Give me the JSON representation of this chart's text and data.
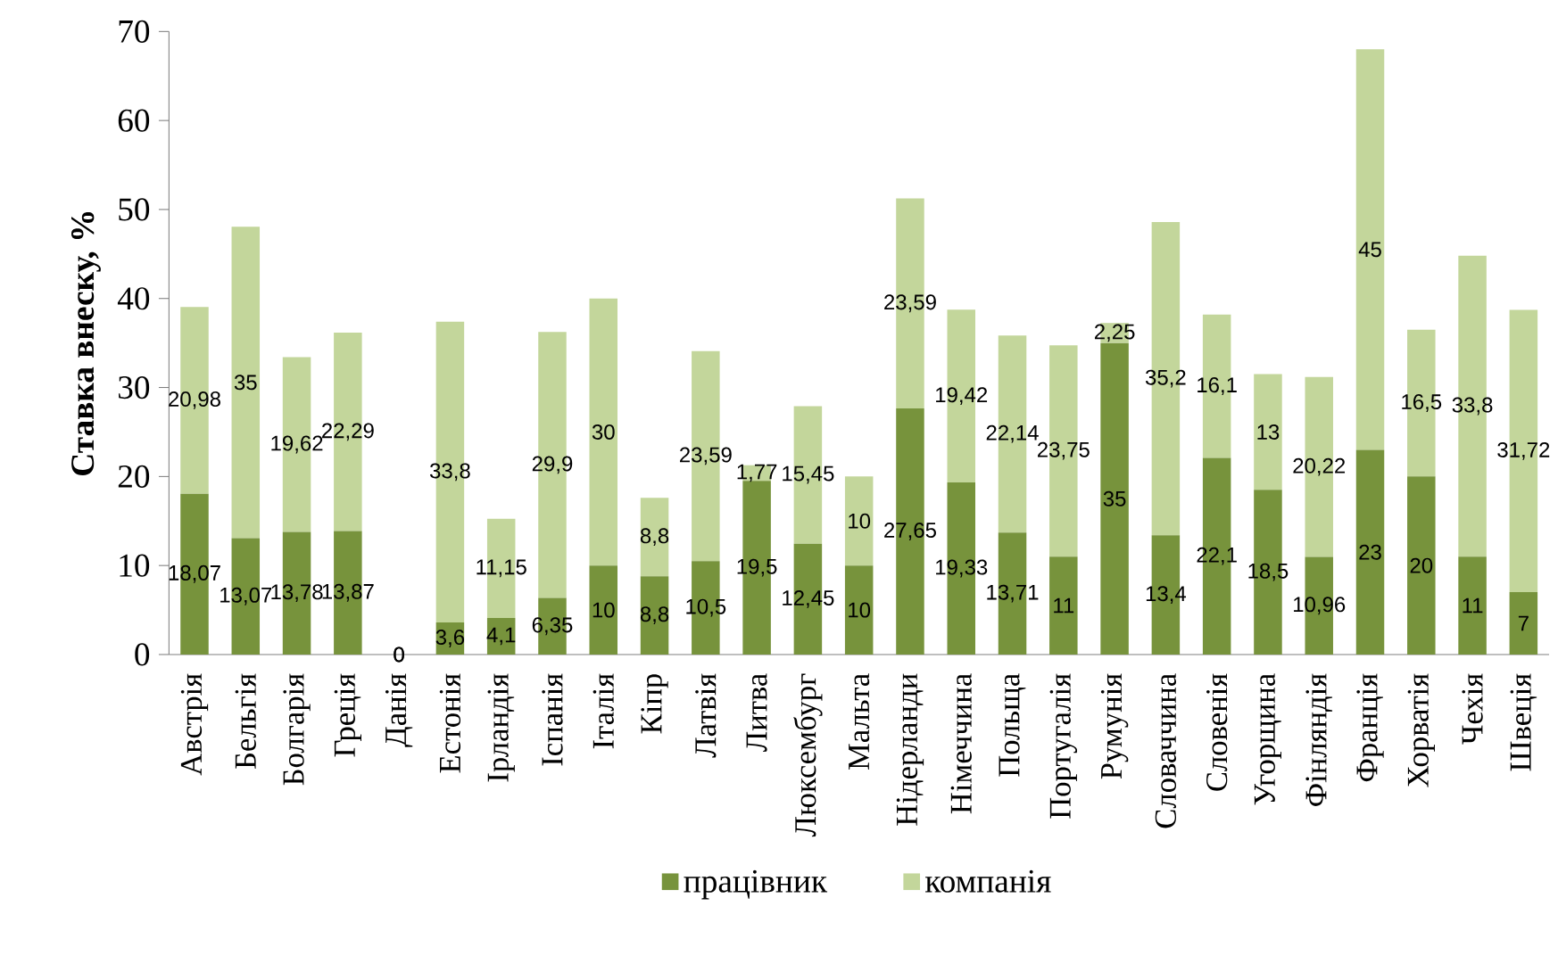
{
  "chart_data": {
    "type": "bar",
    "stacked": true,
    "ylabel": "Ставка внеску, %",
    "categories": [
      "Австрія",
      "Бельгія",
      "Болгарія",
      "Греція",
      "Данія",
      "Естонія",
      "Ірландія",
      "Іспанія",
      "Італія",
      "Кіпр",
      "Латвія",
      "Литва",
      "Люксембург",
      "Мальта",
      "Нідерланди",
      "Німеччина",
      "Польща",
      "Португалія",
      "Румунія",
      "Словаччина",
      "Словенія",
      "Угорщина",
      "Фінляндія",
      "Франція",
      "Хорватія",
      "Чехія",
      "Швеція"
    ],
    "series": [
      {
        "name": "працівник",
        "color": "#77933c",
        "values": [
          18.07,
          13.07,
          13.78,
          13.87,
          0,
          3.6,
          4.1,
          6.35,
          10,
          8.8,
          10.5,
          19.5,
          12.45,
          10,
          27.65,
          19.33,
          13.71,
          11,
          35,
          13.4,
          22.1,
          18.5,
          10.96,
          23,
          20,
          11,
          7
        ],
        "value_labels": [
          "18,07",
          "13,07",
          "13,78",
          "13,87",
          "0",
          "3,6",
          "4,1",
          "6,35",
          "10",
          "8,8",
          "10,5",
          "19,5",
          "12,45",
          "10",
          "27,65",
          "19,33",
          "13,71",
          "11",
          "35",
          "13,4",
          "22,1",
          "18,5",
          "10,96",
          "23",
          "20",
          "11",
          "7"
        ]
      },
      {
        "name": "компанія",
        "color": "#c3d69b",
        "values": [
          20.98,
          35,
          19.62,
          22.29,
          0,
          33.8,
          11.15,
          29.9,
          30,
          8.8,
          23.59,
          1.77,
          15.45,
          10,
          23.59,
          19.42,
          22.14,
          23.75,
          2.25,
          35.2,
          16.1,
          13,
          20.22,
          45,
          16.5,
          33.8,
          31.72
        ],
        "value_labels": [
          "20,98",
          "35",
          "19,62",
          "22,29",
          "0",
          "33,8",
          "11,15",
          "29,9",
          "30",
          "8,8",
          "23,59",
          "1,77",
          "15,45",
          "10",
          "23,59",
          "19,42",
          "22,14",
          "23,75",
          "2,25",
          "35,2",
          "16,1",
          "13",
          "20,22",
          "45",
          "16,5",
          "33,8",
          "31,72"
        ]
      }
    ],
    "ylim": [
      0,
      70
    ],
    "yticks": [
      0,
      10,
      20,
      30,
      40,
      50,
      60,
      70
    ],
    "legend": "bottom"
  }
}
